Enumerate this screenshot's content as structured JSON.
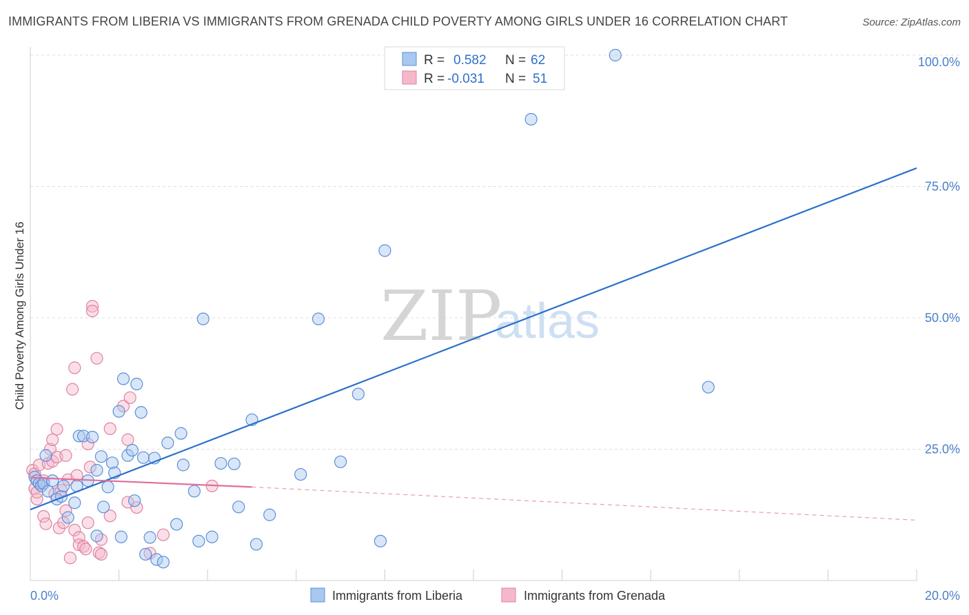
{
  "title": "IMMIGRANTS FROM LIBERIA VS IMMIGRANTS FROM GRENADA CHILD POVERTY AMONG GIRLS UNDER 16 CORRELATION CHART",
  "source": "Source: ZipAtlas.com",
  "watermark": {
    "zip": "ZIP",
    "atlas": "atlas"
  },
  "colors": {
    "liberia_fill": "#a9c8ef",
    "liberia_stroke": "#5b8fd8",
    "liberia_line": "#2a6fcc",
    "grenada_fill": "#f5b8cb",
    "grenada_stroke": "#e0829f",
    "grenada_line": "#e0709a",
    "tick_label": "#4a7fc9",
    "grid": "#dddddd"
  },
  "legend": {
    "rows": [
      {
        "r_label": "R =",
        "r_value": "0.582",
        "n_label": "N =",
        "n_value": "62"
      },
      {
        "r_label": "R =",
        "r_value": "-0.031",
        "n_label": "N =",
        "n_value": "51"
      }
    ]
  },
  "chart_data": {
    "type": "scatter",
    "title": "IMMIGRANTS FROM LIBERIA VS IMMIGRANTS FROM GRENADA CHILD POVERTY AMONG GIRLS UNDER 16 CORRELATION CHART",
    "xlabel": "",
    "ylabel": "Child Poverty Among Girls Under 16",
    "xlim": [
      0,
      20
    ],
    "ylim": [
      0,
      100
    ],
    "x_tick_labels": [
      "0.0%",
      "20.0%"
    ],
    "y_ticks": [
      25,
      50,
      75,
      100
    ],
    "y_tick_labels": [
      "25.0%",
      "50.0%",
      "75.0%",
      "100.0%"
    ],
    "grid": true,
    "legend_position": "top-center",
    "series": [
      {
        "name": "Immigrants from Liberia",
        "r": 0.582,
        "n": 62,
        "trend": {
          "x": [
            0,
            20
          ],
          "y": [
            13.5,
            78.5
          ]
        },
        "points": [
          [
            0.1,
            19.7
          ],
          [
            0.15,
            19
          ],
          [
            0.2,
            18.5
          ],
          [
            0.25,
            18
          ],
          [
            0.3,
            18.5
          ],
          [
            0.35,
            23.8
          ],
          [
            0.4,
            17
          ],
          [
            0.5,
            19
          ],
          [
            0.6,
            15.5
          ],
          [
            0.7,
            16
          ],
          [
            0.75,
            18
          ],
          [
            0.85,
            12
          ],
          [
            1.0,
            14.8
          ],
          [
            1.05,
            18
          ],
          [
            1.1,
            27.5
          ],
          [
            1.2,
            27.5
          ],
          [
            1.3,
            19
          ],
          [
            1.4,
            27.3
          ],
          [
            1.5,
            21
          ],
          [
            1.5,
            8.5
          ],
          [
            1.6,
            23.6
          ],
          [
            1.65,
            14
          ],
          [
            1.75,
            17.8
          ],
          [
            1.85,
            22.4
          ],
          [
            1.9,
            20.5
          ],
          [
            2.0,
            32.2
          ],
          [
            2.05,
            8.3
          ],
          [
            2.1,
            38.4
          ],
          [
            2.2,
            23.8
          ],
          [
            2.3,
            24.8
          ],
          [
            2.35,
            15.2
          ],
          [
            2.4,
            37.4
          ],
          [
            2.5,
            32
          ],
          [
            2.55,
            23.4
          ],
          [
            2.6,
            5
          ],
          [
            2.7,
            8.2
          ],
          [
            2.8,
            23.3
          ],
          [
            2.85,
            4
          ],
          [
            3.0,
            3.5
          ],
          [
            3.1,
            26.2
          ],
          [
            3.3,
            10.7
          ],
          [
            3.4,
            28
          ],
          [
            3.45,
            22
          ],
          [
            3.7,
            17
          ],
          [
            3.8,
            7.5
          ],
          [
            3.9,
            49.8
          ],
          [
            4.1,
            8.3
          ],
          [
            4.3,
            22.3
          ],
          [
            4.6,
            22.2
          ],
          [
            4.7,
            14
          ],
          [
            5.0,
            30.6
          ],
          [
            5.1,
            6.9
          ],
          [
            5.4,
            12.5
          ],
          [
            6.1,
            20.2
          ],
          [
            6.5,
            49.8
          ],
          [
            7.0,
            22.6
          ],
          [
            7.4,
            35.5
          ],
          [
            7.9,
            7.5
          ],
          [
            8.0,
            62.8
          ],
          [
            11.3,
            87.8
          ],
          [
            13.2,
            100
          ],
          [
            15.3,
            36.8
          ]
        ]
      },
      {
        "name": "Immigrants from Grenada",
        "r": -0.031,
        "n": 51,
        "trend": {
          "x": [
            0,
            5.0
          ],
          "y": [
            19.6,
            17.8
          ]
        },
        "trend_dashed": {
          "x": [
            5.0,
            20
          ],
          "y": [
            17.8,
            11.5
          ]
        },
        "points": [
          [
            0.05,
            21
          ],
          [
            0.1,
            20.3
          ],
          [
            0.1,
            17.5
          ],
          [
            0.15,
            15.5
          ],
          [
            0.15,
            16.8
          ],
          [
            0.2,
            22
          ],
          [
            0.25,
            18.5
          ],
          [
            0.3,
            12.2
          ],
          [
            0.3,
            19
          ],
          [
            0.35,
            10.8
          ],
          [
            0.4,
            22.3
          ],
          [
            0.45,
            25
          ],
          [
            0.5,
            26.8
          ],
          [
            0.5,
            22.7
          ],
          [
            0.55,
            16.5
          ],
          [
            0.6,
            28.8
          ],
          [
            0.6,
            23.5
          ],
          [
            0.65,
            10
          ],
          [
            0.7,
            17.2
          ],
          [
            0.75,
            11
          ],
          [
            0.8,
            23.8
          ],
          [
            0.8,
            13.3
          ],
          [
            0.85,
            19.2
          ],
          [
            0.9,
            4.3
          ],
          [
            0.95,
            36.4
          ],
          [
            1.0,
            40.5
          ],
          [
            1.0,
            9.6
          ],
          [
            1.05,
            20
          ],
          [
            1.1,
            8.2
          ],
          [
            1.1,
            6.8
          ],
          [
            1.2,
            6.5
          ],
          [
            1.25,
            6
          ],
          [
            1.3,
            26
          ],
          [
            1.3,
            11
          ],
          [
            1.35,
            21.6
          ],
          [
            1.4,
            52.2
          ],
          [
            1.4,
            51.3
          ],
          [
            1.5,
            42.3
          ],
          [
            1.55,
            5.3
          ],
          [
            1.6,
            5
          ],
          [
            1.6,
            7.8
          ],
          [
            1.8,
            28.9
          ],
          [
            1.8,
            12.3
          ],
          [
            2.1,
            33.2
          ],
          [
            2.2,
            26.8
          ],
          [
            2.2,
            14.9
          ],
          [
            2.25,
            34.8
          ],
          [
            2.4,
            13.9
          ],
          [
            2.7,
            5.2
          ],
          [
            3.0,
            8.7
          ],
          [
            4.1,
            18
          ]
        ]
      }
    ]
  },
  "bottom_legend": [
    {
      "label": "Immigrants from Liberia"
    },
    {
      "label": "Immigrants from Grenada"
    }
  ]
}
